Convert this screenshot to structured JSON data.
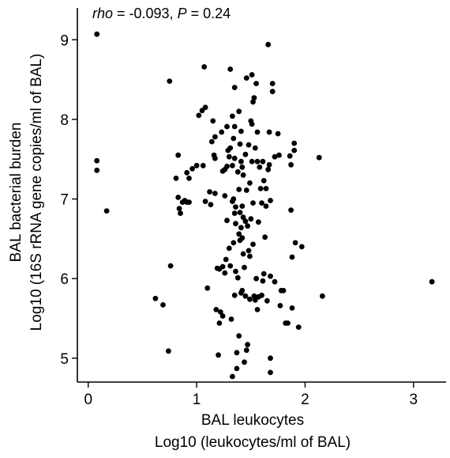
{
  "chart_data": {
    "type": "scatter",
    "annotation": {
      "rho_label": "rho",
      "rho_value": " = -0.093, ",
      "p_label": "P",
      "p_value": " = 0.24"
    },
    "xlabel_line1": "BAL leukocytes",
    "xlabel_line2": "Log10 (leukocytes/ml of BAL)",
    "ylabel_line1": "BAL bacterial burden",
    "ylabel_line2": "Log10 (16S rRNA gene copies/ml of BAL)",
    "xlim": [
      -0.1,
      3.3
    ],
    "ylim": [
      4.7,
      9.4
    ],
    "xticks": [
      0,
      1,
      2,
      3
    ],
    "yticks": [
      5,
      6,
      7,
      8,
      9
    ],
    "point_color": "#000000",
    "points": [
      [
        0.08,
        9.07
      ],
      [
        0.08,
        7.48
      ],
      [
        0.08,
        7.36
      ],
      [
        0.17,
        6.85
      ],
      [
        0.62,
        5.75
      ],
      [
        0.69,
        5.67
      ],
      [
        0.75,
        8.48
      ],
      [
        0.76,
        6.16
      ],
      [
        0.74,
        5.09
      ],
      [
        0.81,
        7.26
      ],
      [
        0.83,
        7.55
      ],
      [
        0.83,
        7.02
      ],
      [
        0.84,
        6.88
      ],
      [
        0.85,
        6.82
      ],
      [
        0.87,
        6.96
      ],
      [
        0.89,
        6.98
      ],
      [
        0.91,
        6.96
      ],
      [
        0.91,
        7.33
      ],
      [
        0.93,
        7.26
      ],
      [
        0.93,
        6.96
      ],
      [
        0.96,
        7.38
      ],
      [
        1.0,
        7.42
      ],
      [
        1.02,
        8.05
      ],
      [
        1.05,
        8.11
      ],
      [
        1.07,
        8.66
      ],
      [
        1.06,
        7.42
      ],
      [
        1.08,
        8.15
      ],
      [
        1.08,
        6.97
      ],
      [
        1.1,
        5.88
      ],
      [
        1.12,
        7.09
      ],
      [
        1.13,
        6.93
      ],
      [
        1.14,
        7.72
      ],
      [
        1.15,
        7.98
      ],
      [
        1.16,
        7.55
      ],
      [
        1.17,
        7.78
      ],
      [
        1.17,
        7.51
      ],
      [
        1.17,
        7.07
      ],
      [
        1.18,
        5.61
      ],
      [
        1.19,
        6.13
      ],
      [
        1.2,
        5.04
      ],
      [
        1.21,
        6.12
      ],
      [
        1.21,
        5.44
      ],
      [
        1.22,
        5.58
      ],
      [
        1.23,
        7.84
      ],
      [
        1.24,
        7.35
      ],
      [
        1.24,
        6.15
      ],
      [
        1.24,
        5.53
      ],
      [
        1.26,
        7.37
      ],
      [
        1.26,
        7.04
      ],
      [
        1.26,
        6.07
      ],
      [
        1.27,
        6.24
      ],
      [
        1.28,
        7.91
      ],
      [
        1.28,
        7.41
      ],
      [
        1.28,
        6.73
      ],
      [
        1.29,
        7.61
      ],
      [
        1.3,
        7.53
      ],
      [
        1.3,
        6.38
      ],
      [
        1.31,
        8.63
      ],
      [
        1.31,
        7.64
      ],
      [
        1.31,
        6.16
      ],
      [
        1.32,
        5.49
      ],
      [
        1.33,
        8.04
      ],
      [
        1.33,
        7.42
      ],
      [
        1.33,
        6.97
      ],
      [
        1.33,
        4.77
      ],
      [
        1.34,
        7.76
      ],
      [
        1.34,
        7.0
      ],
      [
        1.34,
        6.45
      ],
      [
        1.35,
        8.4
      ],
      [
        1.35,
        7.91
      ],
      [
        1.35,
        7.51
      ],
      [
        1.35,
        6.82
      ],
      [
        1.35,
        5.79
      ],
      [
        1.36,
        6.9
      ],
      [
        1.36,
        6.69
      ],
      [
        1.36,
        6.09
      ],
      [
        1.37,
        5.07
      ],
      [
        1.37,
        4.87
      ],
      [
        1.38,
        7.34
      ],
      [
        1.38,
        6.01
      ],
      [
        1.39,
        8.1
      ],
      [
        1.39,
        7.12
      ],
      [
        1.39,
        6.56
      ],
      [
        1.39,
        5.28
      ],
      [
        1.4,
        7.69
      ],
      [
        1.4,
        6.83
      ],
      [
        1.4,
        6.48
      ],
      [
        1.41,
        7.85
      ],
      [
        1.41,
        7.47
      ],
      [
        1.41,
        6.64
      ],
      [
        1.41,
        5.82
      ],
      [
        1.42,
        7.4
      ],
      [
        1.42,
        6.91
      ],
      [
        1.42,
        6.51
      ],
      [
        1.42,
        5.85
      ],
      [
        1.43,
        7.3
      ],
      [
        1.43,
        6.77
      ],
      [
        1.43,
        6.31
      ],
      [
        1.44,
        6.14
      ],
      [
        1.44,
        4.95
      ],
      [
        1.45,
        7.56
      ],
      [
        1.45,
        6.72
      ],
      [
        1.45,
        5.78
      ],
      [
        1.46,
        8.52
      ],
      [
        1.46,
        7.11
      ],
      [
        1.46,
        5.1
      ],
      [
        1.47,
        5.17
      ],
      [
        1.47,
        6.66
      ],
      [
        1.48,
        7.68
      ],
      [
        1.48,
        6.35
      ],
      [
        1.49,
        7.2
      ],
      [
        1.49,
        6.28
      ],
      [
        1.49,
        5.74
      ],
      [
        1.5,
        7.98
      ],
      [
        1.5,
        6.75
      ],
      [
        1.51,
        8.56
      ],
      [
        1.51,
        7.94
      ],
      [
        1.51,
        7.47
      ],
      [
        1.52,
        8.22
      ],
      [
        1.52,
        6.95
      ],
      [
        1.52,
        6.43
      ],
      [
        1.53,
        8.27
      ],
      [
        1.53,
        5.78
      ],
      [
        1.54,
        7.64
      ],
      [
        1.54,
        5.73
      ],
      [
        1.55,
        8.45
      ],
      [
        1.55,
        6.0
      ],
      [
        1.56,
        7.84
      ],
      [
        1.56,
        7.47
      ],
      [
        1.56,
        5.61
      ],
      [
        1.57,
        6.71
      ],
      [
        1.57,
        5.77
      ],
      [
        1.58,
        7.4
      ],
      [
        1.59,
        7.13
      ],
      [
        1.6,
        6.95
      ],
      [
        1.6,
        5.79
      ],
      [
        1.61,
        7.47
      ],
      [
        1.61,
        5.97
      ],
      [
        1.62,
        7.23
      ],
      [
        1.62,
        6.06
      ],
      [
        1.63,
        6.52
      ],
      [
        1.64,
        7.13
      ],
      [
        1.64,
        6.91
      ],
      [
        1.65,
        5.72
      ],
      [
        1.66,
        8.94
      ],
      [
        1.66,
        7.37
      ],
      [
        1.67,
        7.84
      ],
      [
        1.67,
        7.43
      ],
      [
        1.68,
        6.98
      ],
      [
        1.68,
        6.03
      ],
      [
        1.68,
        4.82
      ],
      [
        1.68,
        5.0
      ],
      [
        1.7,
        8.45
      ],
      [
        1.7,
        8.35
      ],
      [
        1.72,
        7.53
      ],
      [
        1.72,
        5.96
      ],
      [
        1.75,
        7.82
      ],
      [
        1.76,
        7.55
      ],
      [
        1.77,
        5.66
      ],
      [
        1.78,
        5.85
      ],
      [
        1.8,
        5.85
      ],
      [
        1.82,
        5.44
      ],
      [
        1.84,
        5.44
      ],
      [
        1.86,
        7.54
      ],
      [
        1.87,
        6.86
      ],
      [
        1.87,
        7.43
      ],
      [
        1.88,
        6.27
      ],
      [
        1.88,
        5.63
      ],
      [
        1.9,
        7.7
      ],
      [
        1.9,
        7.61
      ],
      [
        1.91,
        6.45
      ],
      [
        1.94,
        5.39
      ],
      [
        1.97,
        6.4
      ],
      [
        2.13,
        7.52
      ],
      [
        2.16,
        5.78
      ],
      [
        3.17,
        5.96
      ]
    ]
  }
}
